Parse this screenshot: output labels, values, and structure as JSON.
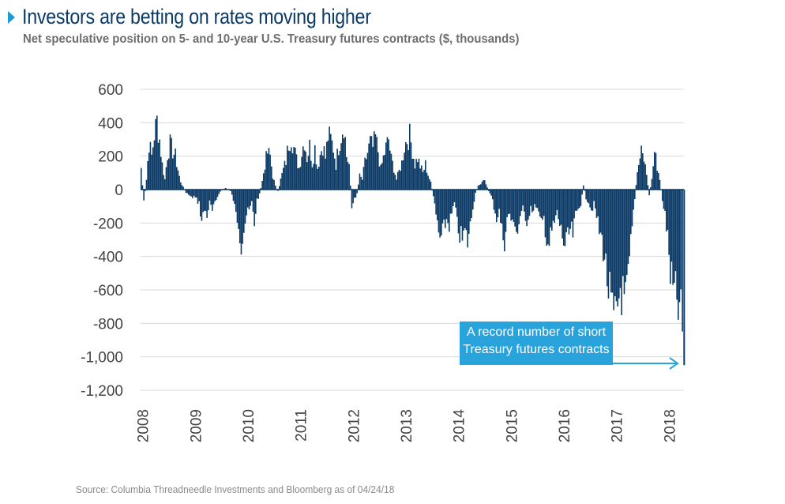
{
  "header": {
    "title": "Investors are betting on rates moving higher",
    "subtitle": "Net speculative position on 5- and 10-year U.S. Treasury futures contracts ($, thousands)"
  },
  "footer": {
    "source": "Source: Columbia Threadneedle Investments and Bloomberg as of 04/24/18"
  },
  "colors": {
    "bars": "#0b3a66",
    "accent": "#29a3dc",
    "grid": "#d9d9d9",
    "title": "#0b3a66"
  },
  "chart_data": {
    "type": "bar",
    "title": "Investors are betting on rates moving higher",
    "subtitle": "Net speculative position on 5- and 10-year U.S. Treasury futures contracts ($, thousands)",
    "xlabel": "",
    "ylabel": "",
    "ylim": [
      -1200,
      600
    ],
    "y_ticks": [
      600,
      400,
      200,
      0,
      -200,
      -400,
      -600,
      -800,
      -1000,
      -1200
    ],
    "y_tick_labels": [
      "600",
      "400",
      "200",
      "0",
      "-200",
      "-400",
      "-600",
      "-800",
      "-1,000",
      "-1,200"
    ],
    "x_tick_labels": [
      "2008",
      "2009",
      "2010",
      "2011",
      "2012",
      "2013",
      "2014",
      "2015",
      "2016",
      "2017",
      "2018"
    ],
    "xlim": [
      2008.0,
      2018.32
    ],
    "grid": "horizontal",
    "annotation": {
      "text_line1": "A record number of short",
      "text_line2": "Treasury futures contracts",
      "target": [
        2018.31,
        -1050
      ]
    },
    "series": [
      {
        "values": [
          [
            2008.0,
            130
          ],
          [
            2008.05,
            -80
          ],
          [
            2008.1,
            60
          ],
          [
            2008.15,
            280
          ],
          [
            2008.2,
            200
          ],
          [
            2008.25,
            330
          ],
          [
            2008.3,
            410
          ],
          [
            2008.35,
            300
          ],
          [
            2008.4,
            150
          ],
          [
            2008.45,
            60
          ],
          [
            2008.5,
            210
          ],
          [
            2008.55,
            270
          ],
          [
            2008.6,
            230
          ],
          [
            2008.65,
            200
          ],
          [
            2008.7,
            120
          ],
          [
            2008.75,
            40
          ],
          [
            2008.8,
            20
          ],
          [
            2008.85,
            -20
          ],
          [
            2008.9,
            -30
          ],
          [
            2008.95,
            -50
          ],
          [
            2009.0,
            -40
          ],
          [
            2009.05,
            -60
          ],
          [
            2009.1,
            -80
          ],
          [
            2009.15,
            -190
          ],
          [
            2009.2,
            -120
          ],
          [
            2009.25,
            -150
          ],
          [
            2009.3,
            -80
          ],
          [
            2009.35,
            -130
          ],
          [
            2009.4,
            -90
          ],
          [
            2009.45,
            -40
          ],
          [
            2009.5,
            -10
          ],
          [
            2009.55,
            0
          ],
          [
            2009.6,
            10
          ],
          [
            2009.65,
            0
          ],
          [
            2009.7,
            -10
          ],
          [
            2009.75,
            -60
          ],
          [
            2009.8,
            -150
          ],
          [
            2009.85,
            -200
          ],
          [
            2009.9,
            -320
          ],
          [
            2009.95,
            -230
          ],
          [
            2010.0,
            -150
          ],
          [
            2010.05,
            -130
          ],
          [
            2010.1,
            -80
          ],
          [
            2010.15,
            -200
          ],
          [
            2010.2,
            -60
          ],
          [
            2010.25,
            -30
          ],
          [
            2010.3,
            50
          ],
          [
            2010.35,
            150
          ],
          [
            2010.4,
            220
          ],
          [
            2010.45,
            200
          ],
          [
            2010.5,
            80
          ],
          [
            2010.55,
            20
          ],
          [
            2010.6,
            -10
          ],
          [
            2010.65,
            60
          ],
          [
            2010.7,
            120
          ],
          [
            2010.75,
            170
          ],
          [
            2010.8,
            280
          ],
          [
            2010.85,
            320
          ],
          [
            2010.9,
            250
          ],
          [
            2010.95,
            180
          ],
          [
            2011.0,
            130
          ],
          [
            2011.05,
            220
          ],
          [
            2011.1,
            300
          ],
          [
            2011.15,
            190
          ],
          [
            2011.2,
            260
          ],
          [
            2011.25,
            160
          ],
          [
            2011.3,
            250
          ],
          [
            2011.35,
            130
          ],
          [
            2011.4,
            210
          ],
          [
            2011.45,
            270
          ],
          [
            2011.5,
            190
          ],
          [
            2011.55,
            320
          ],
          [
            2011.6,
            300
          ],
          [
            2011.65,
            250
          ],
          [
            2011.7,
            150
          ],
          [
            2011.75,
            260
          ],
          [
            2011.8,
            330
          ],
          [
            2011.85,
            400
          ],
          [
            2011.9,
            200
          ],
          [
            2011.95,
            150
          ],
          [
            2012.0,
            -110
          ],
          [
            2012.05,
            -60
          ],
          [
            2012.1,
            -20
          ],
          [
            2012.15,
            80
          ],
          [
            2012.2,
            60
          ],
          [
            2012.25,
            160
          ],
          [
            2012.3,
            220
          ],
          [
            2012.35,
            280
          ],
          [
            2012.4,
            250
          ],
          [
            2012.45,
            310
          ],
          [
            2012.5,
            230
          ],
          [
            2012.55,
            120
          ],
          [
            2012.6,
            190
          ],
          [
            2012.65,
            250
          ],
          [
            2012.7,
            300
          ],
          [
            2012.75,
            180
          ],
          [
            2012.8,
            130
          ],
          [
            2012.85,
            60
          ],
          [
            2012.9,
            110
          ],
          [
            2012.95,
            160
          ],
          [
            2013.0,
            260
          ],
          [
            2013.05,
            300
          ],
          [
            2013.1,
            320
          ],
          [
            2013.15,
            240
          ],
          [
            2013.2,
            150
          ],
          [
            2013.25,
            190
          ],
          [
            2013.3,
            140
          ],
          [
            2013.35,
            100
          ],
          [
            2013.4,
            150
          ],
          [
            2013.45,
            90
          ],
          [
            2013.5,
            40
          ],
          [
            2013.55,
            -50
          ],
          [
            2013.6,
            -150
          ],
          [
            2013.65,
            -270
          ],
          [
            2013.7,
            -300
          ],
          [
            2013.75,
            -230
          ],
          [
            2013.8,
            -180
          ],
          [
            2013.85,
            -210
          ],
          [
            2013.9,
            -150
          ],
          [
            2013.95,
            -80
          ],
          [
            2014.0,
            -200
          ],
          [
            2014.05,
            -270
          ],
          [
            2014.1,
            -300
          ],
          [
            2014.15,
            -250
          ],
          [
            2014.2,
            -310
          ],
          [
            2014.25,
            -220
          ],
          [
            2014.3,
            -100
          ],
          [
            2014.35,
            -20
          ],
          [
            2014.4,
            20
          ],
          [
            2014.45,
            40
          ],
          [
            2014.5,
            70
          ],
          [
            2014.55,
            30
          ],
          [
            2014.6,
            -10
          ],
          [
            2014.65,
            -40
          ],
          [
            2014.7,
            -100
          ],
          [
            2014.75,
            -170
          ],
          [
            2014.8,
            -130
          ],
          [
            2014.85,
            -250
          ],
          [
            2014.9,
            -300
          ],
          [
            2014.95,
            -180
          ],
          [
            2015.0,
            -140
          ],
          [
            2015.05,
            -220
          ],
          [
            2015.1,
            -190
          ],
          [
            2015.15,
            -260
          ],
          [
            2015.2,
            -150
          ],
          [
            2015.25,
            -120
          ],
          [
            2015.3,
            -200
          ],
          [
            2015.35,
            -160
          ],
          [
            2015.4,
            -100
          ],
          [
            2015.45,
            -130
          ],
          [
            2015.5,
            -90
          ],
          [
            2015.55,
            -150
          ],
          [
            2015.6,
            -220
          ],
          [
            2015.65,
            -170
          ],
          [
            2015.7,
            -290
          ],
          [
            2015.75,
            -330
          ],
          [
            2015.8,
            -250
          ],
          [
            2015.85,
            -200
          ],
          [
            2015.9,
            -140
          ],
          [
            2015.95,
            -210
          ],
          [
            2016.0,
            -280
          ],
          [
            2016.05,
            -340
          ],
          [
            2016.1,
            -300
          ],
          [
            2016.15,
            -240
          ],
          [
            2016.2,
            -270
          ],
          [
            2016.25,
            -160
          ],
          [
            2016.3,
            -120
          ],
          [
            2016.35,
            -80
          ],
          [
            2016.4,
            30
          ],
          [
            2016.45,
            -50
          ],
          [
            2016.5,
            -70
          ],
          [
            2016.55,
            -120
          ],
          [
            2016.6,
            -90
          ],
          [
            2016.65,
            -160
          ],
          [
            2016.7,
            -250
          ],
          [
            2016.75,
            -300
          ],
          [
            2016.8,
            -400
          ],
          [
            2016.85,
            -530
          ],
          [
            2016.9,
            -650
          ],
          [
            2016.95,
            -760
          ],
          [
            2017.0,
            -820
          ],
          [
            2017.05,
            -700
          ],
          [
            2017.1,
            -580
          ],
          [
            2017.15,
            -650
          ],
          [
            2017.2,
            -700
          ],
          [
            2017.25,
            -540
          ],
          [
            2017.3,
            -330
          ],
          [
            2017.35,
            -150
          ],
          [
            2017.4,
            30
          ],
          [
            2017.45,
            150
          ],
          [
            2017.5,
            220
          ],
          [
            2017.55,
            180
          ],
          [
            2017.6,
            90
          ],
          [
            2017.65,
            -30
          ],
          [
            2017.7,
            60
          ],
          [
            2017.75,
            230
          ],
          [
            2017.8,
            140
          ],
          [
            2017.85,
            60
          ],
          [
            2017.9,
            -60
          ],
          [
            2017.95,
            -150
          ],
          [
            2018.0,
            -300
          ],
          [
            2018.05,
            -500
          ],
          [
            2018.1,
            -600
          ],
          [
            2018.15,
            -650
          ],
          [
            2018.2,
            -700
          ],
          [
            2018.25,
            -780
          ],
          [
            2018.28,
            -850
          ],
          [
            2018.31,
            -1050
          ]
        ]
      }
    ]
  }
}
